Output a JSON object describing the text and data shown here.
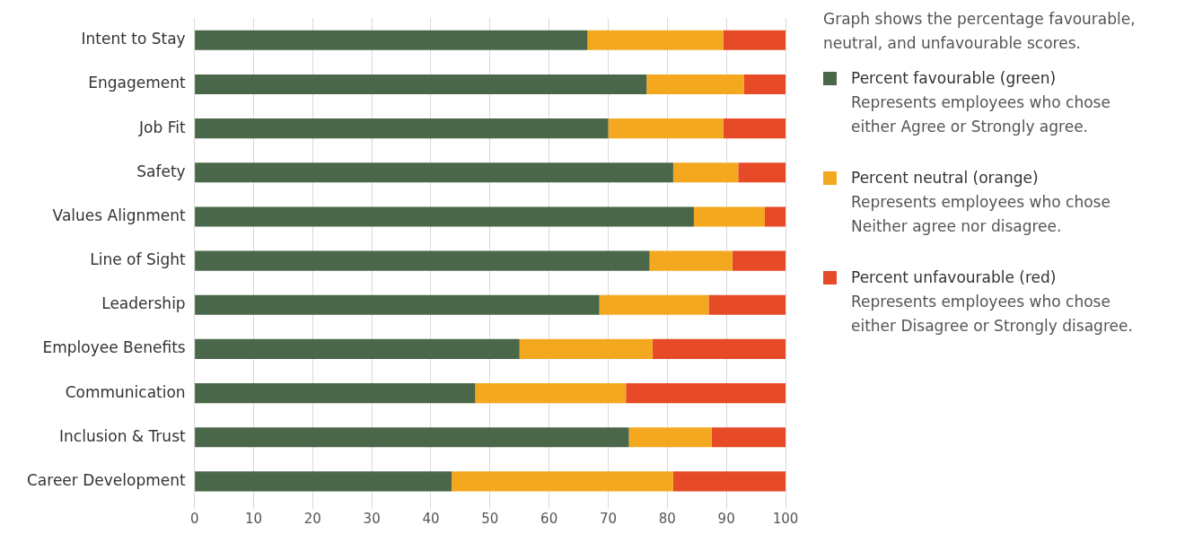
{
  "chart_data": {
    "type": "bar",
    "orientation": "horizontal",
    "stacked": true,
    "categories": [
      "Intent to Stay",
      "Engagement",
      "Job Fit",
      "Safety",
      "Values Alignment",
      "Line of Sight",
      "Leadership",
      "Employee Benefits",
      "Communication",
      "Inclusion & Trust",
      "Career Development"
    ],
    "series": [
      {
        "name": "Percent favourable (green)",
        "color": "#4a6849",
        "values": [
          66.5,
          76.5,
          70,
          81,
          84.5,
          77,
          68.5,
          55,
          47.5,
          73.5,
          43.5
        ]
      },
      {
        "name": "Percent neutral (orange)",
        "color": "#f4a820",
        "values": [
          23,
          16.5,
          19.5,
          11,
          12,
          14,
          18.5,
          22.5,
          25.5,
          14,
          37.5
        ]
      },
      {
        "name": "Percent unfavourable (red)",
        "color": "#e64a27",
        "values": [
          10.5,
          7,
          10.5,
          8,
          3.5,
          9,
          13,
          22.5,
          27,
          12.5,
          19
        ]
      }
    ],
    "xlim": [
      0,
      100
    ],
    "xticks": [
      0,
      10,
      20,
      30,
      40,
      50,
      60,
      70,
      80,
      90,
      100
    ],
    "grid": "x",
    "legend": "right",
    "annotations": [
      "Graph shows the percentage favourable, neutral, and unfavourable scores.",
      "Represents employees who chose either Agree or Strongly agree.",
      "Represents employees who chose Neither agree nor disagree.",
      "Represents employees who chose either Disagree or Strongly disagree."
    ]
  }
}
